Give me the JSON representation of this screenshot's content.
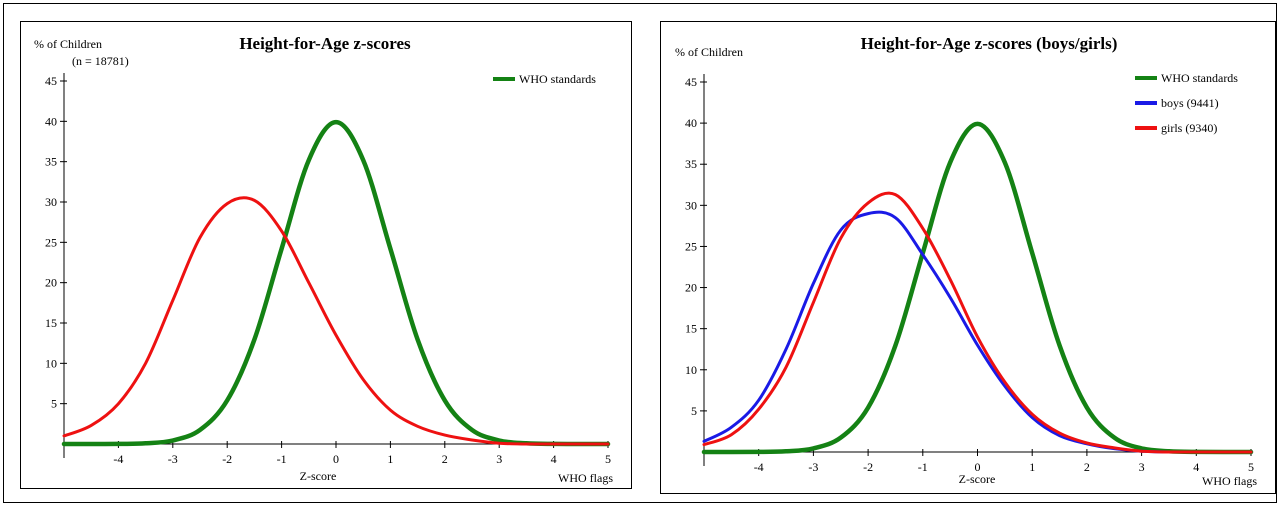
{
  "chart_data": [
    {
      "type": "line",
      "title": "Height-for-Age z-scores",
      "ylabel": "% of Children",
      "xlabel": "Z-score",
      "note": "(n = 18781)",
      "flag_label": "WHO flags",
      "xlim": [
        -5,
        5
      ],
      "ylim": [
        0,
        45
      ],
      "x_ticks": [
        -4,
        -3,
        -2,
        -1,
        0,
        1,
        2,
        3,
        4,
        5
      ],
      "y_ticks": [
        5,
        10,
        15,
        20,
        25,
        30,
        35,
        40,
        45
      ],
      "legend": [
        "WHO standards"
      ],
      "series": [
        {
          "name": "WHO standards",
          "color": "#148214",
          "x": [
            -5,
            -4.5,
            -4,
            -3.5,
            -3,
            -2.5,
            -2,
            -1.5,
            -1,
            -0.5,
            0,
            0.5,
            1,
            1.5,
            2,
            2.5,
            3,
            3.5,
            4,
            4.5,
            5
          ],
          "y": [
            0,
            0,
            0.01,
            0.09,
            0.44,
            1.75,
            5.4,
            12.95,
            24.2,
            35.2,
            39.9,
            35.2,
            24.2,
            12.95,
            5.4,
            1.75,
            0.44,
            0.09,
            0.01,
            0,
            0
          ]
        },
        {
          "name": "",
          "color": "#ee1111",
          "x": [
            -5,
            -4.5,
            -4,
            -3.5,
            -3,
            -2.5,
            -2,
            -1.5,
            -1,
            -0.5,
            0,
            0.5,
            1,
            1.5,
            2,
            2.5,
            3,
            3.5,
            4,
            4.5,
            5
          ],
          "y": [
            1.0,
            2.3,
            5.0,
            10.0,
            17.8,
            25.6,
            29.8,
            30.2,
            26.4,
            20.0,
            13.5,
            8.0,
            4.2,
            2.2,
            1.1,
            0.5,
            0.1,
            0,
            0,
            0,
            0
          ]
        }
      ]
    },
    {
      "type": "line",
      "title": "Height-for-Age z-scores (boys/girls)",
      "ylabel": "% of Children",
      "xlabel": "Z-score",
      "flag_label": "WHO flags",
      "xlim": [
        -5,
        5
      ],
      "ylim": [
        0,
        45
      ],
      "x_ticks": [
        -4,
        -3,
        -2,
        -1,
        0,
        1,
        2,
        3,
        4,
        5
      ],
      "y_ticks": [
        5,
        10,
        15,
        20,
        25,
        30,
        35,
        40,
        45
      ],
      "legend": [
        "WHO standards",
        "boys (9441)",
        "girls (9340)"
      ],
      "series": [
        {
          "name": "WHO standards",
          "color": "#148214",
          "x": [
            -5,
            -4.5,
            -4,
            -3.5,
            -3,
            -2.5,
            -2,
            -1.5,
            -1,
            -0.5,
            0,
            0.5,
            1,
            1.5,
            2,
            2.5,
            3,
            3.5,
            4,
            4.5,
            5
          ],
          "y": [
            0,
            0,
            0.01,
            0.09,
            0.44,
            1.75,
            5.4,
            12.95,
            24.2,
            35.2,
            39.9,
            35.2,
            24.2,
            12.95,
            5.4,
            1.75,
            0.44,
            0.09,
            0.01,
            0,
            0
          ]
        },
        {
          "name": "boys (9441)",
          "color": "#1a1ae6",
          "x": [
            -5,
            -4.5,
            -4,
            -3.5,
            -3,
            -2.5,
            -2,
            -1.5,
            -1,
            -0.5,
            0,
            0.5,
            1,
            1.5,
            2,
            2.5,
            3,
            3.5,
            4,
            4.5,
            5
          ],
          "y": [
            1.3,
            3.0,
            6.3,
            12.5,
            20.5,
            27.0,
            29.0,
            28.5,
            24.0,
            18.8,
            13.0,
            8.0,
            4.2,
            2.0,
            1.0,
            0.4,
            0.1,
            0,
            0,
            0,
            0
          ]
        },
        {
          "name": "girls (9340)",
          "color": "#ee1111",
          "x": [
            -5,
            -4.5,
            -4,
            -3.5,
            -3,
            -2.5,
            -2,
            -1.5,
            -1,
            -0.5,
            0,
            0.5,
            1,
            1.5,
            2,
            2.5,
            3,
            3.5,
            4,
            4.5,
            5
          ],
          "y": [
            0.9,
            2.1,
            5.2,
            10.3,
            18.2,
            26.0,
            30.3,
            31.3,
            27.2,
            21.0,
            14.0,
            8.5,
            4.6,
            2.3,
            1.1,
            0.5,
            0.1,
            0,
            0,
            0,
            0
          ]
        }
      ]
    }
  ]
}
